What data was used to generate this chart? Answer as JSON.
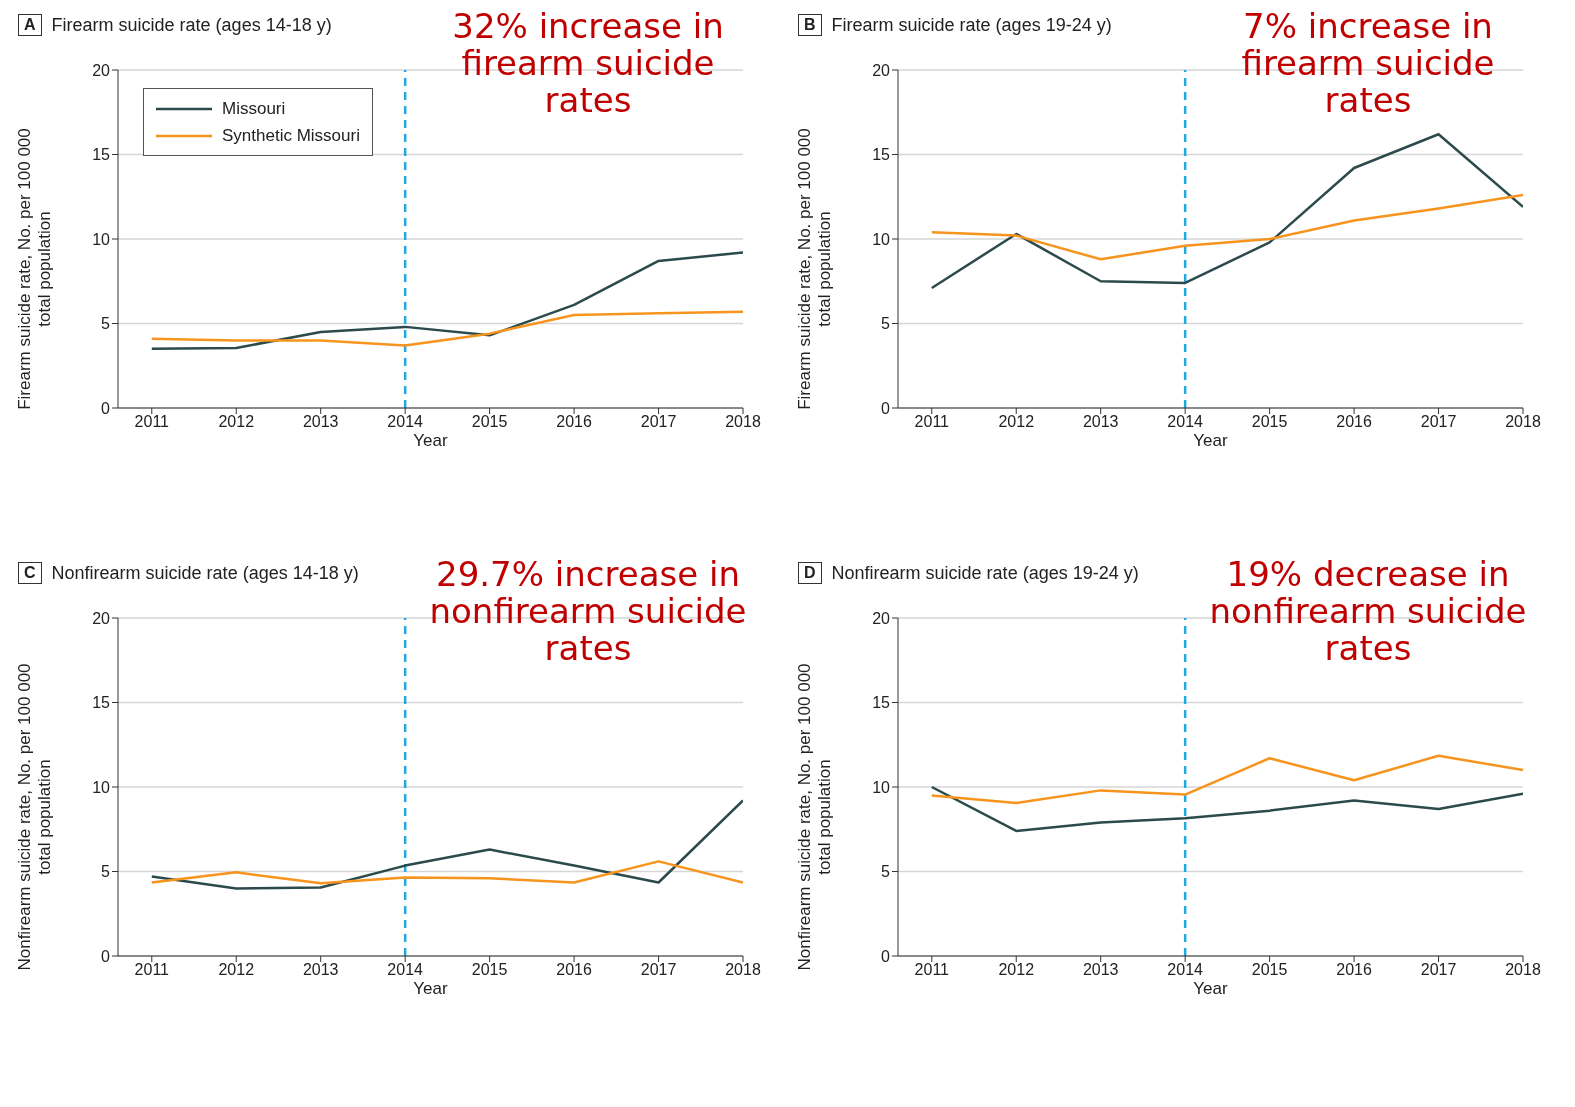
{
  "chart_data": [
    {
      "type": "line",
      "title": "Firearm suicide rate (ages 14-18 y)",
      "xlabel": "Year",
      "ylabel": "Firearm suicide rate, No. per 100 000\ntotal population",
      "x": [
        2011,
        2012,
        2013,
        2014,
        2015,
        2016,
        2017,
        2018
      ],
      "xlim": [
        2010.6,
        2018
      ],
      "xticks": [
        2011,
        2012,
        2013,
        2014,
        2015,
        2016,
        2017,
        2018
      ],
      "ylim": [
        0,
        20
      ],
      "yticks": [
        0,
        5,
        10,
        15,
        20
      ],
      "grid": "y",
      "legend": "top left",
      "series": [
        {
          "name": "Missouri",
          "color": "#2b4a4c",
          "values": [
            3.5,
            3.55,
            4.5,
            4.8,
            4.3,
            6.1,
            8.7,
            9.2
          ]
        },
        {
          "name": "Synthetic Missouri",
          "color": "#f7941d",
          "values": [
            4.1,
            4.0,
            4.0,
            3.7,
            4.4,
            5.5,
            5.6,
            5.7
          ]
        }
      ],
      "ref_lines": [
        {
          "axis": "x",
          "value": 2014,
          "color": "#1fa9e1",
          "line_style": "dashed"
        }
      ],
      "annotations": [
        "A",
        "32% increase in firearm suicide rates"
      ]
    },
    {
      "type": "line",
      "title": "Firearm suicide rate (ages 19-24 y)",
      "xlabel": "Year",
      "ylabel": "Firearm suicide rate, No. per 100 000\ntotal population",
      "x": [
        2011,
        2012,
        2013,
        2014,
        2015,
        2016,
        2017,
        2018
      ],
      "xlim": [
        2010.6,
        2018
      ],
      "xticks": [
        2011,
        2012,
        2013,
        2014,
        2015,
        2016,
        2017,
        2018
      ],
      "ylim": [
        0,
        20
      ],
      "yticks": [
        0,
        5,
        10,
        15,
        20
      ],
      "grid": "y",
      "series": [
        {
          "color": "#2b4a4c",
          "values": [
            7.1,
            10.3,
            7.5,
            7.4,
            9.8,
            14.2,
            16.2,
            11.9
          ]
        },
        {
          "color": "#f7941d",
          "values": [
            10.4,
            10.2,
            8.8,
            9.6,
            10.0,
            11.1,
            11.8,
            12.6
          ]
        }
      ],
      "ref_lines": [
        {
          "axis": "x",
          "value": 2014,
          "color": "#1fa9e1",
          "line_style": "dashed"
        }
      ],
      "annotations": [
        "B",
        "7% increase in firearm suicide rates"
      ]
    },
    {
      "type": "line",
      "title": "Nonfirearm suicide rate (ages 14-18 y)",
      "xlabel": "Year",
      "ylabel": "Nonfirearm suicide rate, No. per 100 000\ntotal population",
      "x": [
        2011,
        2012,
        2013,
        2014,
        2015,
        2016,
        2017,
        2018
      ],
      "xlim": [
        2010.6,
        2018
      ],
      "xticks": [
        2011,
        2012,
        2013,
        2014,
        2015,
        2016,
        2017,
        2018
      ],
      "ylim": [
        0,
        20
      ],
      "yticks": [
        0,
        5,
        10,
        15,
        20
      ],
      "grid": "y",
      "series": [
        {
          "color": "#2b4a4c",
          "values": [
            4.7,
            4.0,
            4.05,
            5.35,
            6.3,
            5.35,
            4.35,
            9.2
          ]
        },
        {
          "color": "#f7941d",
          "values": [
            4.35,
            4.95,
            4.3,
            4.65,
            4.6,
            4.35,
            5.6,
            4.35
          ]
        }
      ],
      "ref_lines": [
        {
          "axis": "x",
          "value": 2014,
          "color": "#1fa9e1",
          "line_style": "dashed"
        }
      ],
      "annotations": [
        "C",
        "29.7% increase in nonfirearm suicide rates"
      ]
    },
    {
      "type": "line",
      "title": "Nonfirearm suicide rate (ages 19-24 y)",
      "xlabel": "Year",
      "ylabel": "Nonfirearm suicide rate, No. per 100 000\ntotal population",
      "x": [
        2011,
        2012,
        2013,
        2014,
        2015,
        2016,
        2017,
        2018
      ],
      "xlim": [
        2010.6,
        2018
      ],
      "xticks": [
        2011,
        2012,
        2013,
        2014,
        2015,
        2016,
        2017,
        2018
      ],
      "ylim": [
        0,
        20
      ],
      "yticks": [
        0,
        5,
        10,
        15,
        20
      ],
      "grid": "y",
      "series": [
        {
          "color": "#2b4a4c",
          "values": [
            10.0,
            7.4,
            7.9,
            8.15,
            8.6,
            9.2,
            8.7,
            9.6
          ]
        },
        {
          "color": "#f7941d",
          "values": [
            9.5,
            9.05,
            9.8,
            9.55,
            11.7,
            10.4,
            11.85,
            11.0
          ]
        }
      ],
      "ref_lines": [
        {
          "axis": "x",
          "value": 2014,
          "color": "#1fa9e1",
          "line_style": "dashed"
        }
      ],
      "annotations": [
        "D",
        "19% decrease in nonfirearm suicide rates"
      ]
    }
  ]
}
